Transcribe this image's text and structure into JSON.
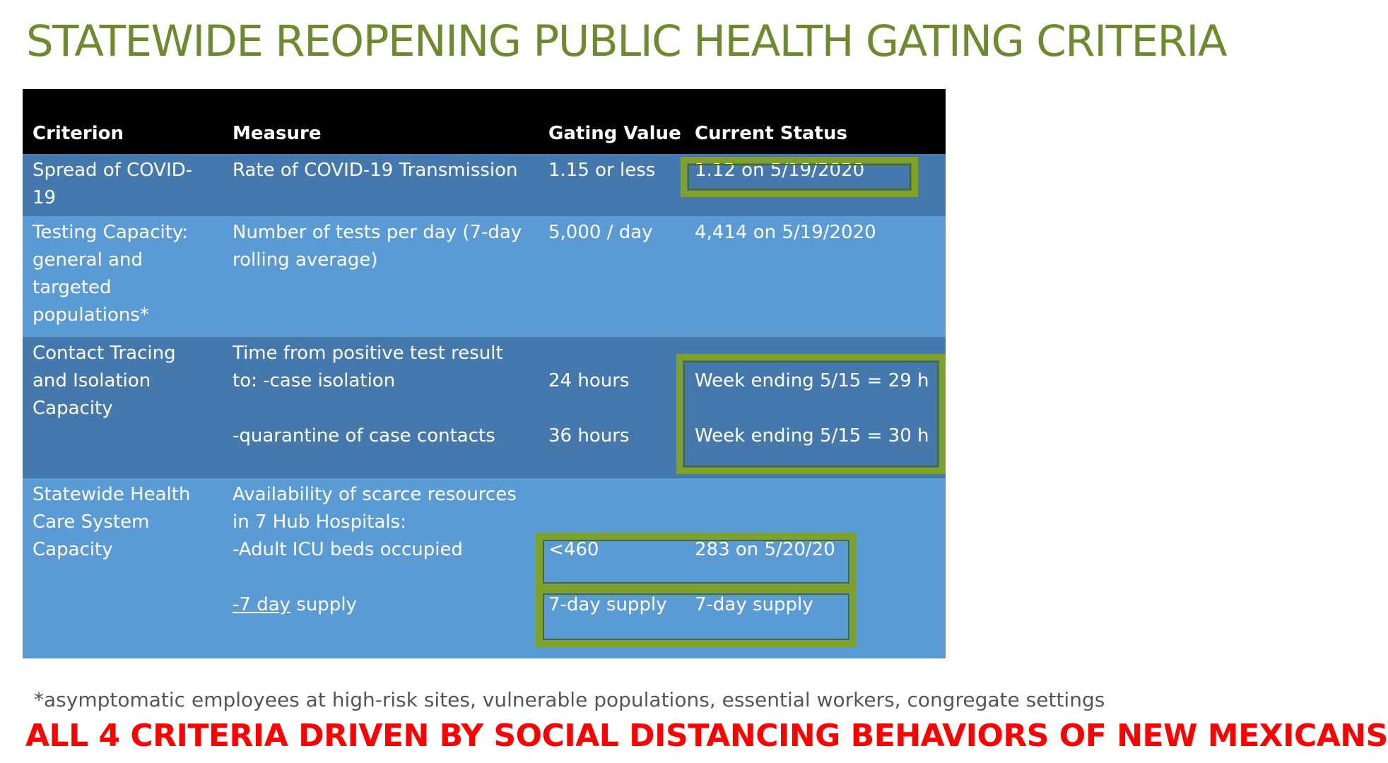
{
  "title": "STATEWIDE REOPENING PUBLIC HEALTH GATING CRITERIA",
  "table": {
    "headers": {
      "criterion": "Criterion",
      "measure": "Measure",
      "gating_value": "Gating Value",
      "current_status": "Current Status"
    },
    "rows": [
      {
        "criterion": "Spread of COVID-19",
        "measure": "Rate of COVID-19 Transmission",
        "gating_value": "1.15 or less",
        "current_status": "1.12 on 5/19/2020"
      },
      {
        "criterion": "Testing Capacity: general and targeted populations*",
        "measure": "Number of tests per day (7-day rolling average)",
        "gating_value": "5,000 / day",
        "current_status": "4,414 on 5/19/2020"
      },
      {
        "criterion": "Contact Tracing and Isolation Capacity",
        "measure_intro": "Time from positive test result",
        "measure_a": "to: -case isolation",
        "measure_b": "-quarantine of case contacts",
        "gating_value_a": "24 hours",
        "gating_value_b": "36 hours",
        "current_status_a": "Week ending 5/15 = 29 h",
        "current_status_b": "Week ending 5/15  = 30 h"
      },
      {
        "criterion": " Statewide Health Care System Capacity",
        "measure_intro_1": "Availability of scarce resources",
        "measure_intro_2": "in 7 Hub Hospitals:",
        "measure_a": "-Adult ICU beds occupied",
        "measure_b_link": "-7 day",
        "measure_b_rest": " supply",
        "gating_value_a": "<460",
        "gating_value_b": "7-day supply",
        "current_status_a": "283 on 5/20/20",
        "current_status_b": "7-day supply"
      }
    ]
  },
  "footnote": "*asymptomatic employees at high-risk sites, vulnerable populations, essential workers, congregate settings",
  "banner": "ALL 4 CRITERIA DRIVEN BY SOCIAL DISTANCING BEHAVIORS OF NEW MEXICANS",
  "colors": {
    "title": "#6e8a2f",
    "header_bg": "#000000",
    "row_dark": "#4579ad",
    "row_light": "#5b9bd5",
    "highlight_box": "#7fa225",
    "banner": "#ff0000"
  }
}
